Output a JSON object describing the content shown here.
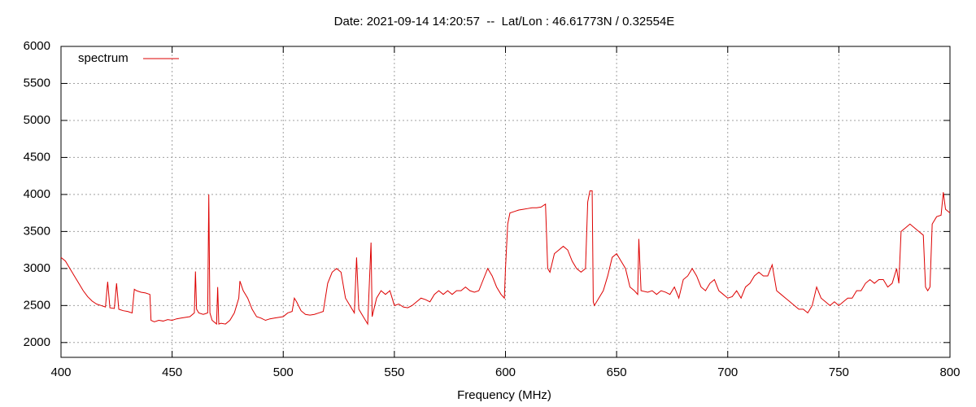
{
  "chart_data": {
    "type": "line",
    "title": "Date: 2021-09-14 14:20:57  --  Lat/Lon : 46.61773N / 0.32554E",
    "x_label": "Frequency (MHz)",
    "xlim": [
      400,
      800
    ],
    "xticks": [
      400,
      450,
      500,
      550,
      600,
      650,
      700,
      750,
      800
    ],
    "ylim": [
      1800,
      6000
    ],
    "yticks": [
      2000,
      2500,
      3000,
      3500,
      4000,
      4500,
      5000,
      5500,
      6000
    ],
    "grid": true,
    "legend": "top-left",
    "x": [
      400,
      402,
      404,
      406,
      408,
      410,
      412,
      414,
      416,
      418,
      420,
      421,
      422,
      424,
      425,
      426,
      428,
      430,
      432,
      433,
      434,
      436,
      438,
      440,
      440.5,
      442,
      444,
      446,
      448,
      450,
      452,
      454,
      456,
      458,
      460,
      460.5,
      461,
      462,
      464,
      466,
      466.5,
      467,
      468,
      470,
      470.5,
      471,
      472,
      474,
      476,
      478,
      480,
      480.5,
      482,
      484,
      486,
      488,
      490,
      492,
      494,
      496,
      498,
      500,
      502,
      504,
      505,
      506,
      508,
      510,
      512,
      514,
      516,
      518,
      520,
      522,
      524,
      526,
      528,
      530,
      532,
      533,
      534,
      536,
      538,
      539.5,
      540,
      542,
      544,
      546,
      548,
      550,
      552,
      554,
      556,
      558,
      560,
      562,
      564,
      566,
      568,
      570,
      572,
      574,
      576,
      578,
      580,
      582,
      584,
      586,
      588,
      590,
      592,
      594,
      596,
      598,
      599.5,
      600,
      601,
      602,
      604,
      606,
      608,
      610,
      612,
      614,
      616,
      618,
      619,
      620,
      622,
      624,
      626,
      628,
      630,
      632,
      634,
      636,
      637,
      638,
      639,
      639.5,
      640,
      642,
      644,
      646,
      648,
      650,
      652,
      654,
      656,
      658,
      659.5,
      660,
      661,
      664,
      666,
      668,
      670,
      672,
      674,
      676,
      678,
      680,
      682,
      684,
      686,
      688,
      690,
      692,
      694,
      696,
      698,
      700,
      702,
      704,
      706,
      708,
      710,
      712,
      714,
      716,
      718,
      720,
      722,
      724,
      726,
      728,
      730,
      732,
      734,
      736,
      738,
      740,
      742,
      744,
      746,
      748,
      750,
      752,
      754,
      756,
      758,
      760,
      762,
      764,
      766,
      768,
      770,
      772,
      774,
      776,
      777,
      778,
      780,
      782,
      784,
      786,
      788,
      789,
      790,
      791,
      792,
      794,
      796,
      797,
      798,
      800
    ],
    "series": [
      {
        "name": "spectrum",
        "color": "#dd0000",
        "values": [
          3150,
          3100,
          3000,
          2900,
          2800,
          2700,
          2620,
          2560,
          2520,
          2500,
          2480,
          2820,
          2470,
          2460,
          2800,
          2450,
          2430,
          2420,
          2400,
          2720,
          2700,
          2680,
          2670,
          2650,
          2300,
          2280,
          2300,
          2290,
          2310,
          2300,
          2320,
          2330,
          2340,
          2350,
          2400,
          2960,
          2450,
          2400,
          2380,
          2400,
          4000,
          2400,
          2300,
          2250,
          2750,
          2250,
          2260,
          2250,
          2300,
          2400,
          2600,
          2830,
          2700,
          2600,
          2450,
          2350,
          2330,
          2300,
          2320,
          2330,
          2340,
          2350,
          2400,
          2420,
          2600,
          2550,
          2430,
          2380,
          2370,
          2380,
          2400,
          2420,
          2800,
          2950,
          3000,
          2950,
          2600,
          2500,
          2400,
          3150,
          2450,
          2350,
          2250,
          3350,
          2350,
          2600,
          2700,
          2650,
          2700,
          2500,
          2520,
          2480,
          2470,
          2500,
          2550,
          2600,
          2580,
          2550,
          2650,
          2700,
          2650,
          2700,
          2650,
          2700,
          2700,
          2750,
          2700,
          2680,
          2700,
          2850,
          3000,
          2900,
          2750,
          2650,
          2600,
          3000,
          3600,
          3750,
          3770,
          3790,
          3800,
          3810,
          3820,
          3820,
          3830,
          3870,
          3000,
          2950,
          3200,
          3250,
          3300,
          3250,
          3100,
          3000,
          2950,
          3000,
          3900,
          4050,
          4050,
          2550,
          2500,
          2600,
          2700,
          2900,
          3150,
          3200,
          3100,
          3000,
          2750,
          2700,
          2650,
          3400,
          2700,
          2680,
          2700,
          2650,
          2700,
          2680,
          2650,
          2750,
          2600,
          2850,
          2900,
          3000,
          2900,
          2750,
          2700,
          2800,
          2850,
          2700,
          2650,
          2600,
          2620,
          2700,
          2600,
          2750,
          2800,
          2900,
          2950,
          2900,
          2900,
          3050,
          2700,
          2650,
          2600,
          2550,
          2500,
          2450,
          2450,
          2400,
          2500,
          2750,
          2600,
          2550,
          2500,
          2550,
          2500,
          2550,
          2600,
          2600,
          2700,
          2700,
          2800,
          2850,
          2800,
          2850,
          2850,
          2750,
          2800,
          3000,
          2800,
          3500,
          3550,
          3600,
          3550,
          3500,
          3450,
          2750,
          2700,
          2750,
          3600,
          3700,
          3720,
          4030,
          3800,
          3750
        ]
      }
    ]
  }
}
